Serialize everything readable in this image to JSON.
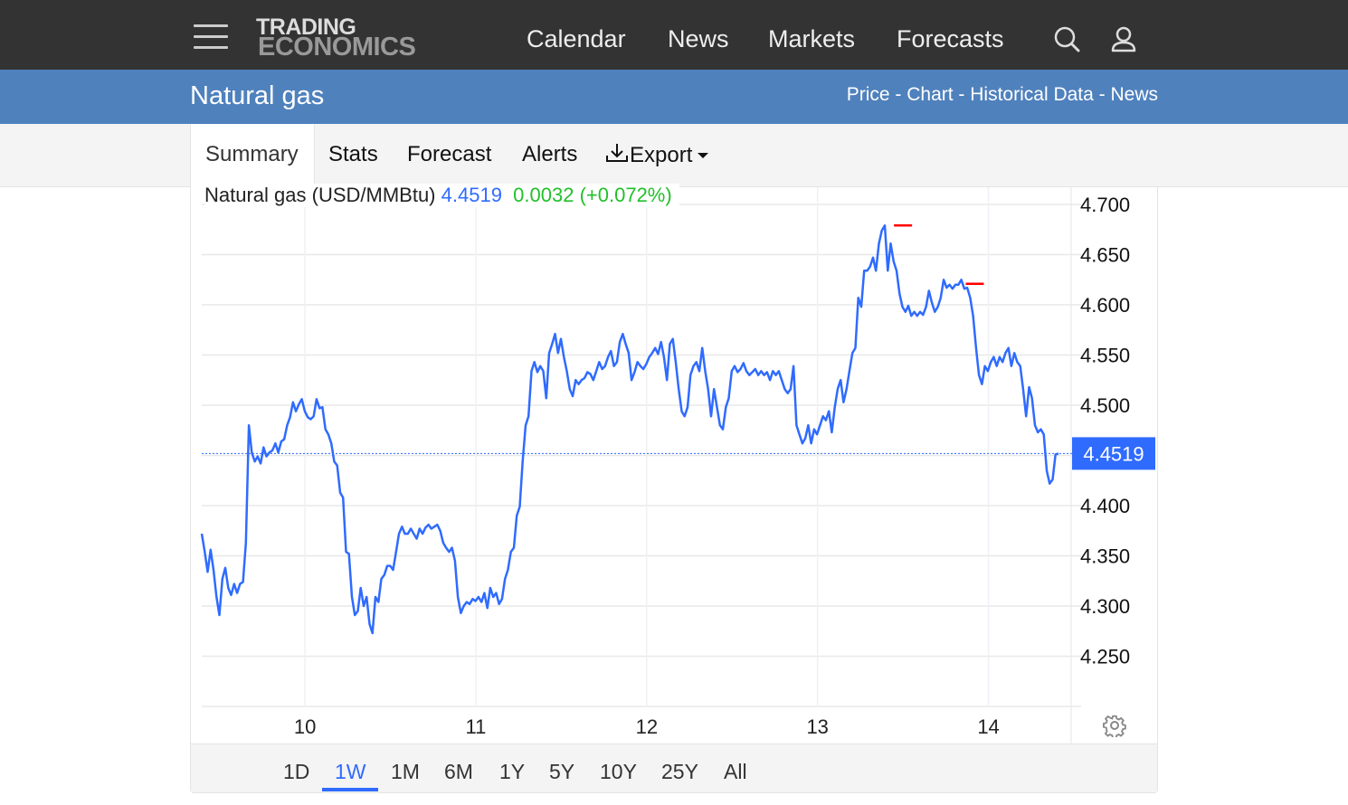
{
  "topbar": {
    "logo_line1": "TRADING",
    "logo_line2": "ECONOMICS",
    "nav": [
      "Calendar",
      "News",
      "Markets",
      "Forecasts"
    ],
    "icons": [
      "menu-icon",
      "search-icon",
      "user-icon"
    ]
  },
  "title_bar": {
    "title": "Natural gas",
    "links": [
      "Price",
      "Chart",
      "Historical Data",
      "News"
    ],
    "separator": " - "
  },
  "tabs": {
    "items": [
      "Summary",
      "Stats",
      "Forecast",
      "Alerts",
      "Export"
    ],
    "active": "Summary"
  },
  "quote": {
    "name": "Natural gas (USD/MMBtu)",
    "price": "4.4519",
    "change": "0.0032 (+0.072%)",
    "price_color": "#2f6bff",
    "change_color": "#22c02a"
  },
  "ranges": {
    "items": [
      "1D",
      "1W",
      "1M",
      "6M",
      "1Y",
      "5Y",
      "10Y",
      "25Y",
      "All"
    ],
    "active": "1W"
  },
  "chart_data": {
    "type": "line",
    "title": "Natural gas (USD/MMBtu)",
    "xlabel": "",
    "ylabel": "",
    "x_range": [
      9.396,
      14.41
    ],
    "ylim": [
      4.2,
      4.715
    ],
    "x_ticks": [
      "10",
      "11",
      "12",
      "13",
      "14"
    ],
    "x_tick_values": [
      10,
      11,
      12,
      13,
      14
    ],
    "y_ticks": [
      "4.250",
      "4.300",
      "4.350",
      "4.400",
      "4.450",
      "4.500",
      "4.550",
      "4.600",
      "4.650",
      "4.700"
    ],
    "y_tick_values": [
      4.25,
      4.3,
      4.35,
      4.4,
      4.45,
      4.5,
      4.55,
      4.6,
      4.65,
      4.7
    ],
    "grid": true,
    "last_value": "4.4519",
    "line_color": "#2f6bff",
    "marker_color": "#ff0000",
    "markers": [
      {
        "x": 13.5,
        "y": 4.679,
        "label": "high"
      },
      {
        "x": 13.92,
        "y": 4.621,
        "label": "local-high"
      }
    ],
    "series": [
      {
        "name": "Natural gas",
        "values": [
          4.372,
          4.354,
          4.334,
          4.356,
          4.336,
          4.309,
          4.291,
          4.327,
          4.338,
          4.318,
          4.311,
          4.322,
          4.313,
          4.322,
          4.324,
          4.363,
          4.48,
          4.453,
          4.444,
          4.449,
          4.442,
          4.458,
          4.449,
          4.453,
          4.455,
          4.462,
          4.453,
          4.464,
          4.466,
          4.48,
          4.488,
          4.503,
          4.494,
          4.501,
          4.506,
          4.494,
          4.488,
          4.486,
          4.489,
          4.506,
          4.497,
          4.498,
          4.476,
          4.471,
          4.462,
          4.444,
          4.44,
          4.413,
          4.408,
          4.354,
          4.352,
          4.309,
          4.291,
          4.295,
          4.318,
          4.3,
          4.309,
          4.282,
          4.273,
          4.309,
          4.304,
          4.327,
          4.331,
          4.34,
          4.34,
          4.336,
          4.354,
          4.372,
          4.379,
          4.372,
          4.372,
          4.377,
          4.372,
          4.367,
          4.377,
          4.372,
          4.378,
          4.381,
          4.377,
          4.379,
          4.381,
          4.375,
          4.363,
          4.358,
          4.354,
          4.358,
          4.345,
          4.309,
          4.293,
          4.3,
          4.304,
          4.302,
          4.307,
          4.305,
          4.309,
          4.304,
          4.313,
          4.298,
          4.318,
          4.309,
          4.313,
          4.302,
          4.307,
          4.327,
          4.336,
          4.354,
          4.358,
          4.39,
          4.399,
          4.444,
          4.48,
          4.489,
          4.534,
          4.543,
          4.533,
          4.539,
          4.534,
          4.507,
          4.552,
          4.561,
          4.571,
          4.552,
          4.566,
          4.548,
          4.534,
          4.516,
          4.509,
          4.525,
          4.521,
          4.525,
          4.527,
          4.533,
          4.531,
          4.525,
          4.534,
          4.543,
          4.536,
          4.539,
          4.548,
          4.554,
          4.539,
          4.543,
          4.563,
          4.571,
          4.561,
          4.552,
          4.525,
          4.533,
          4.543,
          4.539,
          4.536,
          4.541,
          4.548,
          4.552,
          4.557,
          4.551,
          4.563,
          4.548,
          4.525,
          4.561,
          4.566,
          4.543,
          4.516,
          4.494,
          4.489,
          4.498,
          4.53,
          4.539,
          4.543,
          4.534,
          4.557,
          4.534,
          4.516,
          4.489,
          4.516,
          4.498,
          4.48,
          4.476,
          4.498,
          4.507,
          4.534,
          4.539,
          4.533,
          4.536,
          4.542,
          4.534,
          4.53,
          4.533,
          4.536,
          4.53,
          4.534,
          4.53,
          4.533,
          4.525,
          4.534,
          4.53,
          4.534,
          4.525,
          4.516,
          4.512,
          4.516,
          4.539,
          4.48,
          4.471,
          4.462,
          4.467,
          4.48,
          4.462,
          4.476,
          4.471,
          4.48,
          4.489,
          4.485,
          4.494,
          4.473,
          4.498,
          4.516,
          4.525,
          4.503,
          4.516,
          4.534,
          4.552,
          4.557,
          4.607,
          4.598,
          4.634,
          4.634,
          4.638,
          4.647,
          4.634,
          4.661,
          4.674,
          4.679,
          4.634,
          4.661,
          4.643,
          4.634,
          4.611,
          4.598,
          4.593,
          4.599,
          4.589,
          4.593,
          4.589,
          4.593,
          4.59,
          4.598,
          4.614,
          4.602,
          4.593,
          4.598,
          4.607,
          4.625,
          4.617,
          4.62,
          4.616,
          4.62,
          4.62,
          4.625,
          4.616,
          4.617,
          4.607,
          4.589,
          4.557,
          4.53,
          4.521,
          4.539,
          4.534,
          4.543,
          4.548,
          4.539,
          4.548,
          4.543,
          4.552,
          4.557,
          4.539,
          4.552,
          4.543,
          4.539,
          4.516,
          4.489,
          4.518,
          4.507,
          4.48,
          4.473,
          4.476,
          4.471,
          4.435,
          4.422,
          4.426,
          4.451,
          4.4519
        ]
      }
    ]
  }
}
